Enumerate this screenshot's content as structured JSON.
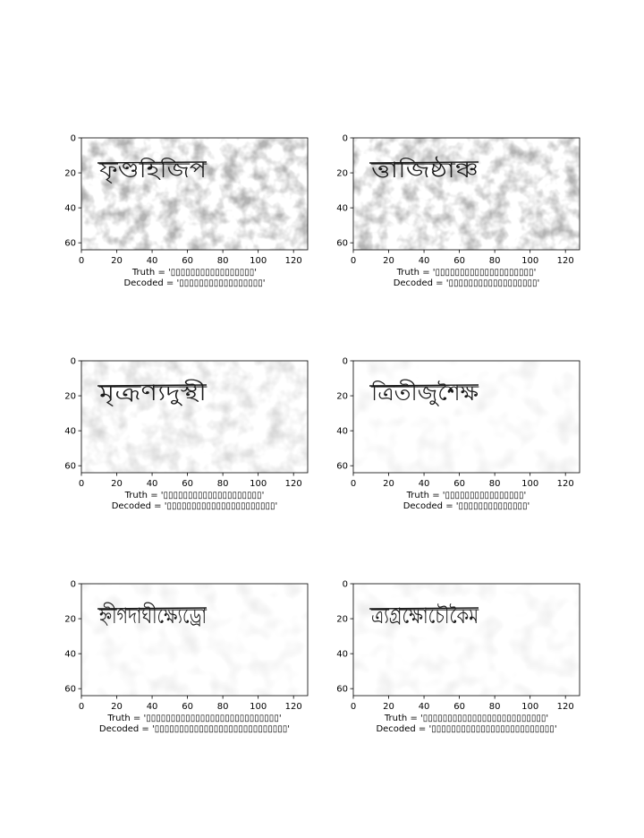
{
  "chart_data": [
    {
      "type": "image",
      "word": "ফৃণ্ডহিজিপ",
      "truth_line": "Truth = '▯▯▯▯▯▯▯▯▯▯▯▯▯▯▯▯▯'",
      "decoded_line": "Decoded = '▯▯▯▯▯▯▯▯▯▯▯▯▯▯▯▯▯'",
      "x_ticks": [
        0,
        20,
        40,
        60,
        80,
        100,
        120
      ],
      "y_ticks": [
        0,
        20,
        40,
        60
      ],
      "xlim": [
        0,
        128
      ],
      "ylim": [
        64,
        0
      ],
      "noise": 0.9
    },
    {
      "type": "image",
      "word": "ত্তাজিষ্ঠাঞ্চ",
      "truth_line": "Truth = '▯▯▯▯▯▯▯▯▯▯▯▯▯▯▯▯▯▯▯▯'",
      "decoded_line": "Decoded = '▯▯▯▯▯▯▯▯▯▯▯▯▯▯▯▯▯▯'",
      "x_ticks": [
        0,
        20,
        40,
        60,
        80,
        100,
        120
      ],
      "y_ticks": [
        0,
        20,
        40,
        60
      ],
      "xlim": [
        0,
        128
      ],
      "ylim": [
        64,
        0
      ],
      "noise": 0.9
    },
    {
      "type": "image",
      "word": "মৃত্রূণ্যদুস্থী",
      "truth_line": "Truth = '▯▯▯▯▯▯▯▯▯▯▯▯▯▯▯▯▯▯▯▯'",
      "decoded_line": "Decoded = '▯▯▯▯▯▯▯▯▯▯▯▯▯▯▯▯▯▯▯▯▯▯'",
      "x_ticks": [
        0,
        20,
        40,
        60,
        80,
        100,
        120
      ],
      "y_ticks": [
        0,
        20,
        40,
        60
      ],
      "xlim": [
        0,
        128
      ],
      "ylim": [
        64,
        0
      ],
      "noise": 0.45
    },
    {
      "type": "image",
      "word": "ত্রিতীজুশৈক্ষ",
      "truth_line": "Truth = '▯▯▯▯▯▯▯▯▯▯▯▯▯▯▯▯'",
      "decoded_line": "Decoded = '▯▯▯▯▯▯▯▯▯▯▯▯▯▯'",
      "x_ticks": [
        0,
        20,
        40,
        60,
        80,
        100,
        120
      ],
      "y_ticks": [
        0,
        20,
        40,
        60
      ],
      "xlim": [
        0,
        128
      ],
      "ylim": [
        64,
        0
      ],
      "noise": 0.2
    },
    {
      "type": "image",
      "word": "হ্নীগদাঘীক্ষ্যেড্রো",
      "truth_line": "Truth = '▯▯▯▯▯▯▯▯▯▯▯▯▯▯▯▯▯▯▯▯▯▯▯▯▯▯▯'",
      "decoded_line": "Decoded = '▯▯▯▯▯▯▯▯▯▯▯▯▯▯▯▯▯▯▯▯▯▯▯▯▯▯▯'",
      "x_ticks": [
        0,
        20,
        40,
        60,
        80,
        100,
        120
      ],
      "y_ticks": [
        0,
        20,
        40,
        60
      ],
      "xlim": [
        0,
        128
      ],
      "ylim": [
        64,
        0
      ],
      "noise": 0.25
    },
    {
      "type": "image",
      "word": "ত্র্যগ্রক্ষোচৌকৈম",
      "truth_line": "Truth = '▯▯▯▯▯▯▯▯▯▯▯▯▯▯▯▯▯▯▯▯▯▯▯▯▯'",
      "decoded_line": "Decoded = '▯▯▯▯▯▯▯▯▯▯▯▯▯▯▯▯▯▯▯▯▯▯▯▯▯'",
      "x_ticks": [
        0,
        20,
        40,
        60,
        80,
        100,
        120
      ],
      "y_ticks": [
        0,
        20,
        40,
        60
      ],
      "xlim": [
        0,
        128
      ],
      "ylim": [
        64,
        0
      ],
      "noise": 0.25
    }
  ]
}
